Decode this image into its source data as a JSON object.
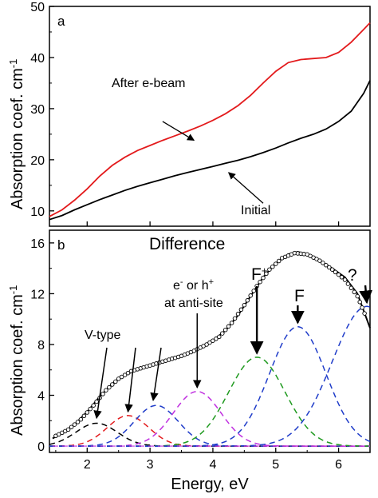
{
  "chart_data": [
    {
      "type": "line",
      "panel_label": "a",
      "ylabel": "Absorption coef. cm",
      "ylabel_superscript": "-1",
      "xlim": [
        1.4,
        6.5
      ],
      "ylim": [
        7,
        50
      ],
      "yticks": [
        10,
        20,
        30,
        40,
        50
      ],
      "ytick_labels": [
        "10",
        "20",
        "30",
        "40",
        "50"
      ],
      "series": [
        {
          "name": "After e-beam",
          "color": "#e31a1c",
          "points": [
            [
              1.4,
              8.9
            ],
            [
              1.6,
              10.2
            ],
            [
              1.8,
              12.1
            ],
            [
              2.0,
              14.3
            ],
            [
              2.2,
              16.8
            ],
            [
              2.4,
              18.9
            ],
            [
              2.6,
              20.5
            ],
            [
              2.8,
              21.8
            ],
            [
              3.0,
              22.8
            ],
            [
              3.2,
              23.8
            ],
            [
              3.4,
              24.7
            ],
            [
              3.6,
              25.6
            ],
            [
              3.8,
              26.6
            ],
            [
              4.0,
              27.7
            ],
            [
              4.2,
              29.0
            ],
            [
              4.4,
              30.6
            ],
            [
              4.6,
              32.6
            ],
            [
              4.8,
              35.0
            ],
            [
              5.0,
              37.3
            ],
            [
              5.2,
              39.0
            ],
            [
              5.4,
              39.6
            ],
            [
              5.6,
              39.8
            ],
            [
              5.8,
              40.0
            ],
            [
              6.0,
              41.0
            ],
            [
              6.2,
              43.0
            ],
            [
              6.4,
              45.5
            ],
            [
              6.5,
              46.8
            ]
          ]
        },
        {
          "name": "Initial",
          "color": "#000000",
          "points": [
            [
              1.4,
              8.3
            ],
            [
              1.6,
              9.1
            ],
            [
              1.8,
              10.2
            ],
            [
              2.0,
              11.2
            ],
            [
              2.2,
              12.2
            ],
            [
              2.4,
              13.1
            ],
            [
              2.6,
              14.0
            ],
            [
              2.8,
              14.8
            ],
            [
              3.0,
              15.5
            ],
            [
              3.2,
              16.2
            ],
            [
              3.4,
              16.9
            ],
            [
              3.6,
              17.5
            ],
            [
              3.8,
              18.1
            ],
            [
              4.0,
              18.7
            ],
            [
              4.2,
              19.3
            ],
            [
              4.4,
              19.9
            ],
            [
              4.6,
              20.6
            ],
            [
              4.8,
              21.4
            ],
            [
              5.0,
              22.3
            ],
            [
              5.2,
              23.3
            ],
            [
              5.4,
              24.2
            ],
            [
              5.6,
              25.0
            ],
            [
              5.8,
              26.0
            ],
            [
              6.0,
              27.5
            ],
            [
              6.2,
              29.5
            ],
            [
              6.4,
              33.0
            ],
            [
              6.5,
              35.5
            ]
          ]
        }
      ],
      "annotations": [
        {
          "text": "After e-beam",
          "arrow_from": [
            3.2,
            27.5
          ],
          "arrow_to": [
            3.7,
            23.8
          ]
        },
        {
          "text": "Initial",
          "arrow_from": [
            4.8,
            11.5
          ],
          "arrow_to": [
            4.25,
            17.5
          ]
        }
      ]
    },
    {
      "type": "line",
      "panel_label": "b",
      "title": "Difference",
      "xlabel": "Energy, eV",
      "ylabel": "Absorption coef. cm",
      "ylabel_superscript": "-1",
      "xlim": [
        1.4,
        6.5
      ],
      "ylim": [
        -0.5,
        17
      ],
      "xticks": [
        2,
        3,
        4,
        5,
        6
      ],
      "xtick_labels": [
        "2",
        "3",
        "4",
        "5",
        "6"
      ],
      "yticks": [
        0,
        4,
        8,
        12,
        16
      ],
      "ytick_labels": [
        "0",
        "4",
        "8",
        "12",
        "16"
      ],
      "measured": {
        "marker": "open-circle",
        "color": "#000000",
        "points": [
          [
            1.5,
            0.8
          ],
          [
            1.7,
            1.3
          ],
          [
            1.9,
            2.1
          ],
          [
            2.1,
            3.2
          ],
          [
            2.3,
            4.4
          ],
          [
            2.5,
            5.3
          ],
          [
            2.7,
            5.9
          ],
          [
            2.9,
            6.2
          ],
          [
            3.1,
            6.5
          ],
          [
            3.3,
            6.8
          ],
          [
            3.5,
            7.1
          ],
          [
            3.7,
            7.5
          ],
          [
            3.9,
            8.0
          ],
          [
            4.1,
            8.6
          ],
          [
            4.3,
            9.7
          ],
          [
            4.5,
            11.1
          ],
          [
            4.7,
            12.6
          ],
          [
            4.9,
            13.9
          ],
          [
            5.1,
            14.8
          ],
          [
            5.3,
            15.2
          ],
          [
            5.5,
            15.1
          ],
          [
            5.7,
            14.6
          ],
          [
            5.9,
            13.9
          ],
          [
            6.1,
            13.1
          ],
          [
            6.3,
            11.8
          ],
          [
            6.45,
            10.0
          ]
        ]
      },
      "fit": {
        "color": "#000000",
        "points": [
          [
            1.45,
            0.6
          ],
          [
            1.6,
            1.0
          ],
          [
            1.8,
            1.7
          ],
          [
            2.0,
            2.7
          ],
          [
            2.2,
            3.9
          ],
          [
            2.4,
            4.9
          ],
          [
            2.6,
            5.6
          ],
          [
            2.8,
            6.0
          ],
          [
            3.0,
            6.3
          ],
          [
            3.2,
            6.6
          ],
          [
            3.4,
            6.9
          ],
          [
            3.6,
            7.3
          ],
          [
            3.8,
            7.7
          ],
          [
            4.0,
            8.3
          ],
          [
            4.2,
            9.1
          ],
          [
            4.4,
            10.3
          ],
          [
            4.6,
            11.8
          ],
          [
            4.8,
            13.3
          ],
          [
            5.0,
            14.4
          ],
          [
            5.2,
            15.1
          ],
          [
            5.35,
            15.3
          ],
          [
            5.5,
            15.1
          ],
          [
            5.7,
            14.6
          ],
          [
            5.9,
            14.0
          ],
          [
            6.1,
            13.3
          ],
          [
            6.3,
            12.0
          ],
          [
            6.5,
            9.3
          ]
        ]
      },
      "components": [
        {
          "color": "#000000",
          "center": 2.15,
          "amplitude": 1.8,
          "width": 0.33
        },
        {
          "color": "#e31a1c",
          "center": 2.65,
          "amplitude": 2.4,
          "width": 0.33
        },
        {
          "color": "#1f3cc9",
          "center": 3.1,
          "amplitude": 3.2,
          "width": 0.35
        },
        {
          "color": "#c030e0",
          "center": 3.75,
          "amplitude": 4.3,
          "width": 0.38
        },
        {
          "color": "#1f9a1f",
          "center": 4.7,
          "amplitude": 7.0,
          "width": 0.45
        },
        {
          "color": "#1f3cc9",
          "center": 5.35,
          "amplitude": 9.4,
          "width": 0.45
        },
        {
          "color": "#1f3cc9",
          "center": 6.45,
          "amplitude": 11.0,
          "width": 0.55
        }
      ],
      "annotations": [
        {
          "text": "V-type",
          "arrows_to": [
            [
              2.15,
              2.2
            ],
            [
              2.65,
              2.7
            ],
            [
              3.05,
              3.6
            ]
          ]
        },
        {
          "text_main": "e",
          "text_sup": "-",
          "text_mid": " or h",
          "text_sup2": "+",
          "line2": "at anti-site",
          "arrow_to": [
            3.75,
            4.6
          ]
        },
        {
          "text_main": "F",
          "text_sup": "+",
          "arrow_to": [
            4.7,
            7.3
          ]
        },
        {
          "text_main": "F",
          "arrow_to": [
            5.35,
            9.7
          ]
        },
        {
          "text_main": "?",
          "arrow_to": [
            6.45,
            11.3
          ]
        }
      ]
    }
  ]
}
